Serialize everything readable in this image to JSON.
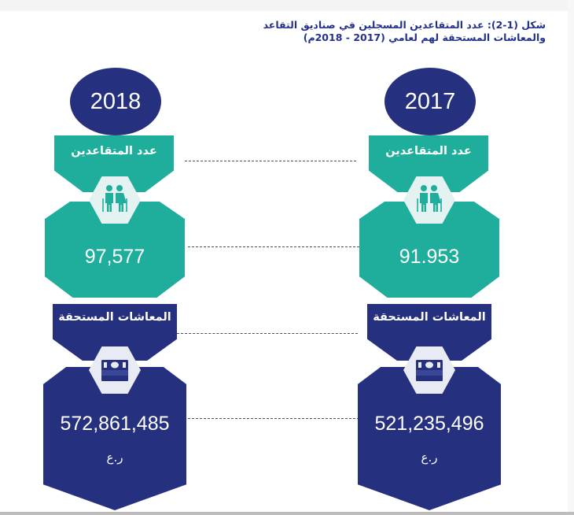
{
  "title": "شكل (1-2): عدد المتقاعدين المسجلين في صناديق التقاعد والمعاشات المستحقة لهم لعامي (2017 - 2018م)",
  "columns": [
    {
      "year": "2018",
      "retirees_label": "عدد المتقاعدين",
      "retirees_value": "97,577",
      "pensions_label": "المعاشات المستحقة",
      "pensions_value": "572,861,485",
      "currency": "ر.ع"
    },
    {
      "year": "2017",
      "retirees_label": "عدد المتقاعدين",
      "retirees_value": "91.953",
      "pensions_label": "المعاشات المستحقة",
      "pensions_value": "521,235,496",
      "currency": "ر.ع"
    }
  ],
  "icons": {
    "retirees": "elderly-couple-icon",
    "pensions": "money-stack-icon"
  },
  "colors": {
    "navy": "#25307f",
    "teal": "#1fae9b",
    "hex_teal": "#e4f3f1",
    "hex_navy": "#e9ebf4"
  }
}
